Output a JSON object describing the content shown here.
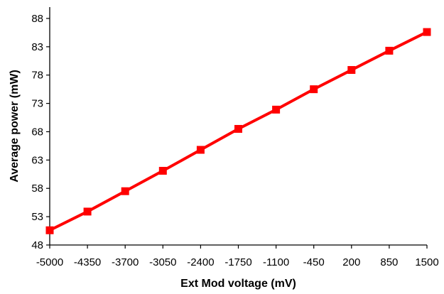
{
  "chart_data": {
    "type": "line",
    "xlabel": "Ext Mod voltage (mV)",
    "ylabel": "Average power (mW)",
    "x_tick_labels": [
      "-5000",
      "-4350",
      "-3700",
      "-3050",
      "-2400",
      "-1750",
      "-1100",
      "-450",
      "200",
      "850",
      "1500"
    ],
    "y_tick_labels": [
      "48",
      "53",
      "58",
      "63",
      "68",
      "73",
      "78",
      "83",
      "88"
    ],
    "xlim": [
      -5000,
      1500
    ],
    "ylim": [
      48,
      90
    ],
    "grid": false,
    "legend": "none",
    "series": [
      {
        "x": [
          -5000,
          -4350,
          -3700,
          -3050,
          -2400,
          -1750,
          -1100,
          -450,
          200,
          850,
          1500
        ],
        "y": [
          50.6,
          53.9,
          57.5,
          61.1,
          64.8,
          68.5,
          71.9,
          75.5,
          78.9,
          82.3,
          85.6
        ],
        "color": "#ff0000",
        "marker": "square"
      }
    ]
  }
}
